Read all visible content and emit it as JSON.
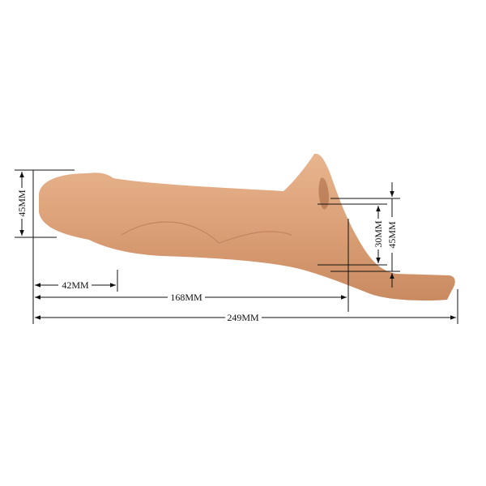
{
  "product_color": "#d9a27a",
  "dimensions": {
    "head_height": "45MM",
    "head_length": "42MM",
    "shaft_length": "168MM",
    "total_length": "249MM",
    "inner_opening": "30MM",
    "outer_opening": "45MM"
  }
}
